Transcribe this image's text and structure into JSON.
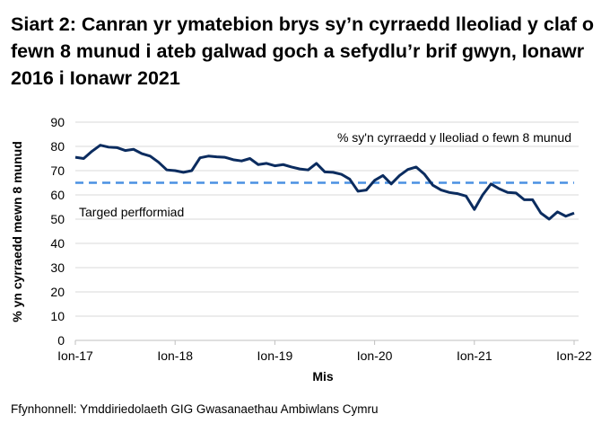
{
  "title": "Siart 2: Canran yr ymatebion brys sy’n cyrraedd lleoliad y claf o fewn 8 munud i ateb galwad goch a sefydlu’r brif gwyn, Ionawr 2016 i Ionawr 2021",
  "source": "Ffynhonnell: Ymddiriedolaeth GIG Gwasanaethau Ambiwlans Cymru",
  "chart_data": {
    "type": "line",
    "xlabel": "Mis",
    "ylabel": "% yn cyrraedd mewn 8 munud",
    "ylim": [
      0,
      90
    ],
    "yticks": [
      "0",
      "10",
      "20",
      "30",
      "40",
      "50",
      "60",
      "70",
      "80",
      "90"
    ],
    "xticks": [
      "Ion-17",
      "Ion-18",
      "Ion-19",
      "Ion-20",
      "Ion-21",
      "Ion-22"
    ],
    "grid": true,
    "colors": {
      "series": "#0b2c5f",
      "target": "#4a90e2",
      "grid": "#d9d9d9"
    },
    "series": [
      {
        "name": "% sy'n cyrraedd y lleoliad o fewn 8 munud",
        "values": [
          75.5,
          75,
          78,
          80.5,
          79.7,
          79.5,
          78.3,
          78.8,
          77,
          76,
          73.5,
          70.3,
          70,
          69.3,
          70,
          75.3,
          76,
          75.7,
          75.5,
          74.5,
          74,
          75,
          72.5,
          73,
          72,
          72.5,
          71.5,
          70.7,
          70.3,
          73,
          69.5,
          69.3,
          68.5,
          66.5,
          61.5,
          62,
          66,
          68,
          64.5,
          68,
          70.5,
          71.5,
          68.5,
          64,
          62,
          61,
          60.5,
          59.5,
          54,
          60,
          64.5,
          62.5,
          61,
          60.8,
          58,
          58,
          52.5,
          50,
          53,
          51.2,
          52.5
        ]
      }
    ],
    "target": {
      "name": "Targed perfformiad",
      "value": 65
    }
  }
}
